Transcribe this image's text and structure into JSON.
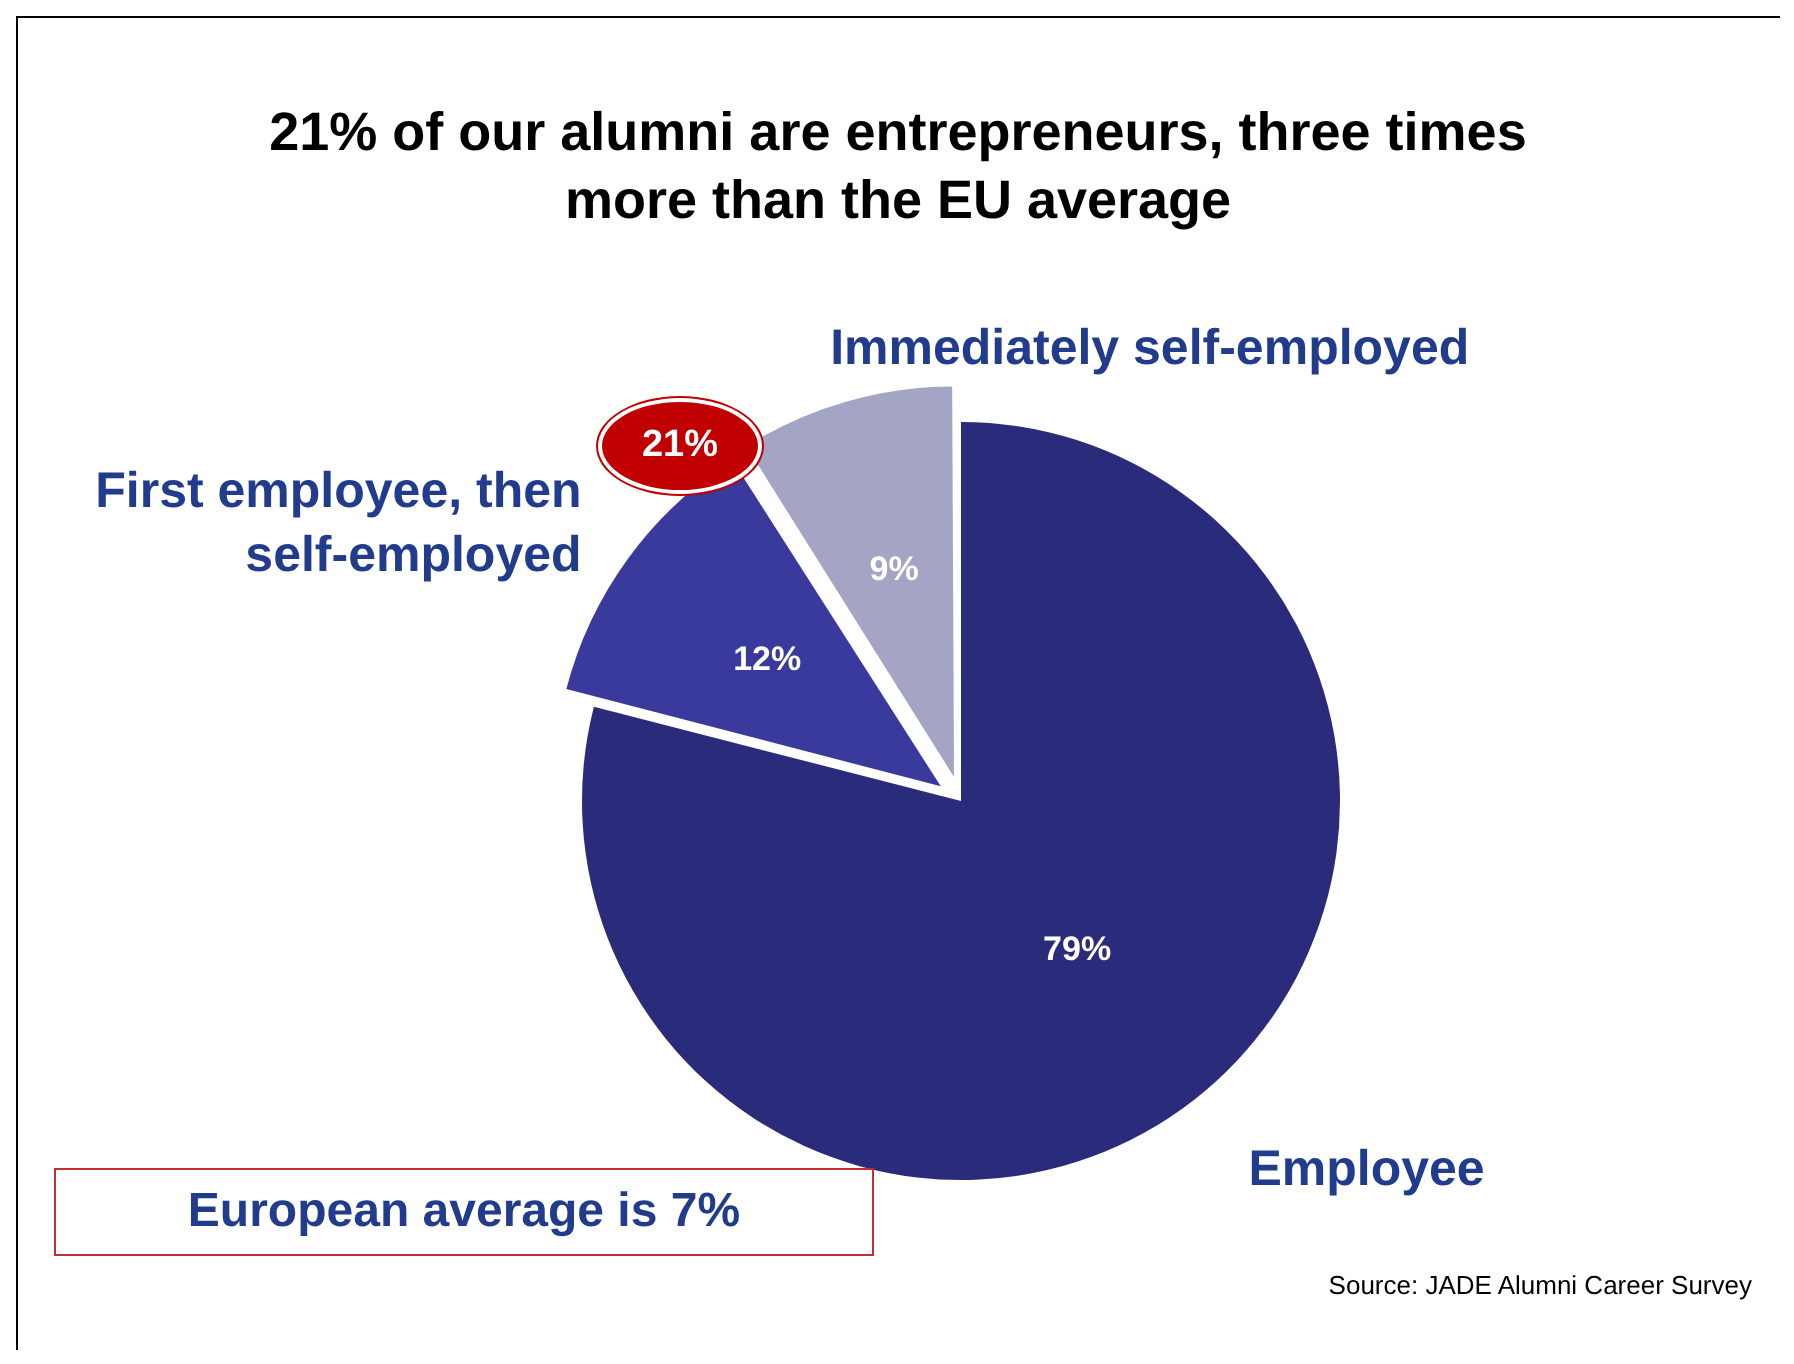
{
  "chart_data": {
    "type": "pie",
    "title": "21% of our alumni are entrepreneurs, three times more than the EU average",
    "categories": [
      "Employee",
      "First employee, then self-employed",
      "Immediately self-employed"
    ],
    "values": [
      79,
      12,
      9
    ],
    "colors": [
      "#2b2b7b",
      "#3a3a9c",
      "#a4a4c4"
    ],
    "value_labels": [
      "79%",
      "12%",
      "9%"
    ],
    "legend": false,
    "annotations": [
      "21%",
      "European average is 7%",
      "Source: JADE Alumni Career Survey"
    ]
  }
}
